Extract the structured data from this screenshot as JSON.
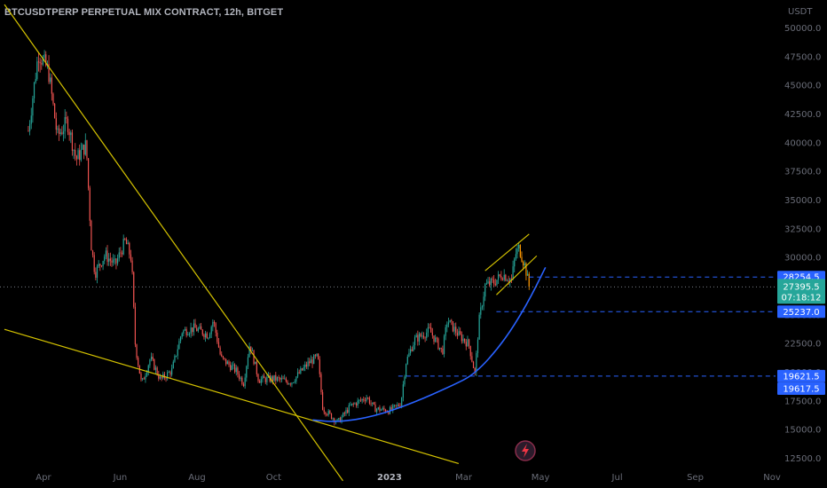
{
  "header": {
    "title": "BTCUSDTPERP PERPETUAL MIX CONTRACT, 12h, BITGET"
  },
  "colors": {
    "background": "#000000",
    "candle_up": "#26a69a",
    "candle_down": "#ef5350",
    "trendline": "#d4c200",
    "curve": "#2962ff",
    "level_line": "#2962ff",
    "badge_blue": "#2962ff",
    "badge_price": "#26a69a",
    "highlight": "#ff9800",
    "crosshair": "#787b86"
  },
  "chart_data": {
    "type": "candlestick",
    "title": "BTCUSDTPERP PERPETUAL MIX CONTRACT, 12h, BITGET",
    "currency": "USDT",
    "ylim": [
      12500,
      50000
    ],
    "y_ticks": [
      "50000.0",
      "47500.0",
      "45000.0",
      "42500.0",
      "40000.0",
      "37500.0",
      "35000.0",
      "32500.0",
      "30000.0",
      "27500.0",
      "25000.0",
      "22500.0",
      "20000.0",
      "17500.0",
      "15000.0",
      "12500.0"
    ],
    "x_ticks": [
      {
        "label": "Apr",
        "bold": false
      },
      {
        "label": "Jun",
        "bold": false
      },
      {
        "label": "Aug",
        "bold": false
      },
      {
        "label": "Oct",
        "bold": false
      },
      {
        "label": "2023",
        "bold": true
      },
      {
        "label": "Mar",
        "bold": false
      },
      {
        "label": "May",
        "bold": false
      },
      {
        "label": "Jul",
        "bold": false
      },
      {
        "label": "Sep",
        "bold": false
      },
      {
        "label": "Nov",
        "bold": false
      }
    ],
    "price_path": [
      {
        "d": "2022-03-20",
        "p": 41000
      },
      {
        "d": "2022-03-28",
        "p": 47800
      },
      {
        "d": "2022-04-05",
        "p": 46200
      },
      {
        "d": "2022-04-12",
        "p": 40500
      },
      {
        "d": "2022-04-20",
        "p": 41800
      },
      {
        "d": "2022-04-27",
        "p": 38500
      },
      {
        "d": "2022-05-05",
        "p": 39800
      },
      {
        "d": "2022-05-09",
        "p": 31000
      },
      {
        "d": "2022-05-12",
        "p": 28600
      },
      {
        "d": "2022-05-20",
        "p": 30200
      },
      {
        "d": "2022-05-28",
        "p": 29300
      },
      {
        "d": "2022-06-05",
        "p": 31400
      },
      {
        "d": "2022-06-10",
        "p": 29800
      },
      {
        "d": "2022-06-13",
        "p": 22300
      },
      {
        "d": "2022-06-18",
        "p": 18900
      },
      {
        "d": "2022-06-25",
        "p": 21200
      },
      {
        "d": "2022-07-03",
        "p": 19300
      },
      {
        "d": "2022-07-12",
        "p": 20100
      },
      {
        "d": "2022-07-20",
        "p": 23500
      },
      {
        "d": "2022-07-30",
        "p": 23800
      },
      {
        "d": "2022-08-10",
        "p": 23200
      },
      {
        "d": "2022-08-14",
        "p": 24500
      },
      {
        "d": "2022-08-20",
        "p": 21200
      },
      {
        "d": "2022-09-01",
        "p": 20100
      },
      {
        "d": "2022-09-07",
        "p": 19000
      },
      {
        "d": "2022-09-12",
        "p": 22500
      },
      {
        "d": "2022-09-19",
        "p": 19300
      },
      {
        "d": "2022-10-01",
        "p": 19400
      },
      {
        "d": "2022-10-15",
        "p": 19100
      },
      {
        "d": "2022-10-29",
        "p": 20800
      },
      {
        "d": "2022-11-05",
        "p": 21300
      },
      {
        "d": "2022-11-09",
        "p": 16800
      },
      {
        "d": "2022-11-21",
        "p": 15600
      },
      {
        "d": "2022-12-01",
        "p": 17000
      },
      {
        "d": "2022-12-14",
        "p": 17800
      },
      {
        "d": "2022-12-20",
        "p": 16800
      },
      {
        "d": "2023-01-01",
        "p": 16600
      },
      {
        "d": "2023-01-10",
        "p": 17200
      },
      {
        "d": "2023-01-14",
        "p": 20800
      },
      {
        "d": "2023-01-21",
        "p": 22800
      },
      {
        "d": "2023-02-02",
        "p": 23600
      },
      {
        "d": "2023-02-12",
        "p": 21700
      },
      {
        "d": "2023-02-16",
        "p": 24500
      },
      {
        "d": "2023-02-25",
        "p": 23200
      },
      {
        "d": "2023-03-05",
        "p": 22400
      },
      {
        "d": "2023-03-10",
        "p": 19800
      },
      {
        "d": "2023-03-13",
        "p": 24300
      },
      {
        "d": "2023-03-18",
        "p": 27500
      },
      {
        "d": "2023-03-25",
        "p": 27800
      },
      {
        "d": "2023-04-01",
        "p": 28500
      },
      {
        "d": "2023-04-08",
        "p": 28000
      },
      {
        "d": "2023-04-11",
        "p": 30200
      },
      {
        "d": "2023-04-14",
        "p": 30800
      },
      {
        "d": "2023-04-19",
        "p": 29100
      },
      {
        "d": "2023-04-22",
        "p": 27400
      }
    ],
    "trend_lines": [
      {
        "name": "descending-resistance",
        "color": "#d4c200",
        "points": [
          {
            "d": "2022-03-01",
            "p": 52000
          },
          {
            "d": "2022-11-25",
            "p": 10500
          }
        ]
      },
      {
        "name": "descending-support",
        "color": "#d4c200",
        "points": [
          {
            "d": "2022-03-01",
            "p": 23700
          },
          {
            "d": "2023-02-25",
            "p": 12000
          }
        ]
      },
      {
        "name": "channel-upper",
        "color": "#d4c200",
        "points": [
          {
            "d": "2023-03-18",
            "p": 28800
          },
          {
            "d": "2023-04-22",
            "p": 32000
          }
        ]
      },
      {
        "name": "channel-lower",
        "color": "#d4c200",
        "points": [
          {
            "d": "2023-03-27",
            "p": 26700
          },
          {
            "d": "2023-04-28",
            "p": 30100
          }
        ]
      }
    ],
    "curve": {
      "name": "rounded-bottom",
      "color": "#2962ff",
      "points": [
        {
          "d": "2022-11-01",
          "p": 15800
        },
        {
          "d": "2022-11-21",
          "p": 15600
        },
        {
          "d": "2022-12-20",
          "p": 16100
        },
        {
          "d": "2023-01-20",
          "p": 17300
        },
        {
          "d": "2023-02-20",
          "p": 18800
        },
        {
          "d": "2023-03-10",
          "p": 19800
        },
        {
          "d": "2023-04-01",
          "p": 22500
        },
        {
          "d": "2023-04-20",
          "p": 25800
        },
        {
          "d": "2023-05-05",
          "p": 29100
        }
      ]
    },
    "levels": [
      {
        "value": 28254.5,
        "label": "28254.5",
        "from": "2023-04-22",
        "color": "#2962ff"
      },
      {
        "value": 25237.0,
        "label": "25237.0",
        "from": "2023-03-27",
        "color": "#2962ff"
      },
      {
        "value": 19621.5,
        "label": "19621.5",
        "from": "2023-01-08",
        "color": "#2962ff"
      }
    ],
    "current_price": {
      "value": 27395.5,
      "label": "27395.5",
      "countdown": "07:18:12"
    },
    "extra_badges": [
      {
        "value": 19617.5,
        "label": "19617.5"
      }
    ]
  },
  "axis_unit": "USDT"
}
